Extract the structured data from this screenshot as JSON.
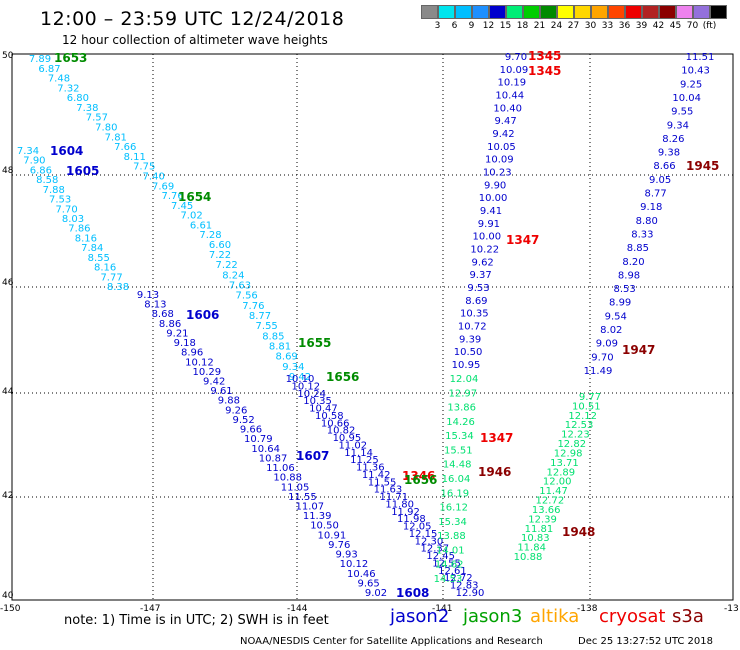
{
  "title": "12:00 – 23:59 UTC 12/24/2018",
  "subtitle": "12 hour collection of altimeter wave heights",
  "legend": {
    "colors": [
      "#8a8a8a",
      "#00e5ee",
      "#00bfff",
      "#1e90ff",
      "#0000cd",
      "#00ee76",
      "#00cd00",
      "#008b00",
      "#ffff00",
      "#ffd700",
      "#ffa500",
      "#ff4500",
      "#ee0000",
      "#b22222",
      "#8b0000",
      "#ee82ee",
      "#9370db",
      "#000000"
    ],
    "labels": [
      "3",
      "6",
      "9",
      "12",
      "15",
      "18",
      "21",
      "24",
      "27",
      "30",
      "33",
      "36",
      "39",
      "42",
      "45",
      "70",
      "(ft)"
    ]
  },
  "axes": {
    "lon_labels": [
      "-150",
      "-147",
      "-144",
      "-141",
      "-138",
      "-13"
    ],
    "lat_labels": [
      "50",
      "48",
      "46",
      "44",
      "42",
      "40"
    ]
  },
  "note": "note: 1) Time is in UTC; 2) SWH is in feet",
  "satellites": [
    {
      "name": "jason2",
      "color": "#0000cd"
    },
    {
      "name": "jason3",
      "color": "#00a000"
    },
    {
      "name": "altika",
      "color": "#ffa500"
    },
    {
      "name": "cryosat",
      "color": "#ee0000"
    },
    {
      "name": "s3a",
      "color": "#8b0000"
    }
  ],
  "footer": "NOAA/NESDIS Center for Satellite Applications and Research",
  "footer_date": "Dec 25 13:27:52 UTC 2018",
  "tracks": [
    {
      "id": "t1653",
      "color": "#00bfff",
      "time": "1653",
      "time_color": "#008b00",
      "values": [
        "7.89",
        "6.87",
        "7.48",
        "7.32",
        "6.80",
        "7.38",
        "7.57",
        "7.80",
        "7.81",
        "7.66",
        "8.11",
        "7.75",
        "7.40",
        "7.69",
        "7.76",
        "7.45",
        "7.02",
        "6.61",
        "7.28",
        "6.60",
        "7.22",
        "7.22",
        "8.24",
        "7.63",
        "7.56",
        "7.76",
        "8.77",
        "7.55",
        "8.85",
        "8.81",
        "8.69",
        "9.34",
        "9.42"
      ]
    },
    {
      "id": "t1604",
      "color": "#00bfff",
      "time": "1604",
      "time_color": "#0000cd",
      "values": [
        "7.34",
        "7.90",
        "6.86",
        "8.58",
        "7.88",
        "7.53",
        "7.70",
        "8.03",
        "7.86",
        "8.16",
        "7.84",
        "8.55",
        "8.16",
        "7.77",
        "8.38",
        "9.13",
        "8.13",
        "8.68",
        "8.86",
        "9.21",
        "9.18",
        "8.96",
        "10.12",
        "10.29",
        "9.42",
        "9.61",
        "9.88",
        "9.26",
        "9.52",
        "9.66",
        "10.79",
        "10.64",
        "10.87",
        "11.06",
        "10.88",
        "11.05",
        "11.55",
        "11.07",
        "11.39",
        "10.50",
        "10.91",
        "9.76",
        "9.93",
        "10.12",
        "10.46",
        "9.65",
        "9.02"
      ]
    },
    {
      "id": "t1654",
      "color": "#0000cd",
      "time": "1655",
      "time_color": "#008b00",
      "values": [
        "10.10",
        "10.12",
        "10.24",
        "10.35",
        "10.47",
        "10.58",
        "10.66",
        "10.82",
        "10.95",
        "11.02",
        "11.14",
        "11.25",
        "11.36",
        "11.42",
        "11.55",
        "11.63",
        "11.71",
        "11.80",
        "11.92",
        "11.98",
        "12.05",
        "12.15",
        "12.30",
        "12.37",
        "12.45",
        "12.55",
        "12.61",
        "12.72",
        "12.83",
        "12.90"
      ]
    },
    {
      "id": "t1345",
      "color": "#0000cd",
      "time": "1345",
      "time_color": "#ee0000",
      "values": [
        "9.70",
        "10.09",
        "10.19",
        "10.44",
        "10.40",
        "9.47",
        "9.42",
        "10.05",
        "10.09",
        "10.23",
        "9.90",
        "10.00",
        "9.41",
        "9.91",
        "10.00",
        "10.22",
        "9.62",
        "9.37",
        "9.53",
        "8.69",
        "10.35",
        "10.72",
        "9.39",
        "10.50",
        "10.95",
        "12.04",
        "12.97",
        "13.86",
        "14.26",
        "15.34",
        "15.51",
        "14.48",
        "16.04",
        "16.19",
        "16.12",
        "15.34",
        "13.88",
        "14.01",
        "14.62",
        "14.53"
      ]
    },
    {
      "id": "t1945",
      "color": "#0000cd",
      "time": "1945",
      "time_color": "#8b0000",
      "values": [
        "11.51",
        "10.43",
        "9.25",
        "10.04",
        "9.55",
        "9.34",
        "8.26",
        "9.38",
        "8.66",
        "9.05",
        "8.77",
        "9.18",
        "8.80",
        "8.33",
        "8.85",
        "8.20",
        "8.98",
        "8.53",
        "8.99",
        "9.54",
        "8.02",
        "9.09",
        "9.70",
        "11.49",
        "9.77",
        "10.51",
        "12.12",
        "12.53",
        "12.23",
        "12.82",
        "12.98",
        "13.71",
        "12.89",
        "12.00",
        "11.47",
        "12.72",
        "13.66",
        "12.39",
        "11.81",
        "10.83",
        "11.84",
        "10.88"
      ]
    }
  ],
  "track_labels": [
    {
      "text": "1604",
      "color": "#0000cd"
    },
    {
      "text": "1605",
      "color": "#0000cd"
    },
    {
      "text": "1606",
      "color": "#0000cd"
    },
    {
      "text": "1607",
      "color": "#0000cd"
    },
    {
      "text": "1608",
      "color": "#0000cd"
    },
    {
      "text": "1654",
      "color": "#008b00"
    },
    {
      "text": "1655",
      "color": "#008b00"
    },
    {
      "text": "1656",
      "color": "#008b00"
    },
    {
      "text": "1346",
      "color": "#ee0000"
    },
    {
      "text": "1347",
      "color": "#ee0000"
    },
    {
      "text": "1347",
      "color": "#ee0000"
    },
    {
      "text": "1946",
      "color": "#8b0000"
    },
    {
      "text": "1947",
      "color": "#8b0000"
    },
    {
      "text": "1948",
      "color": "#8b0000"
    }
  ]
}
